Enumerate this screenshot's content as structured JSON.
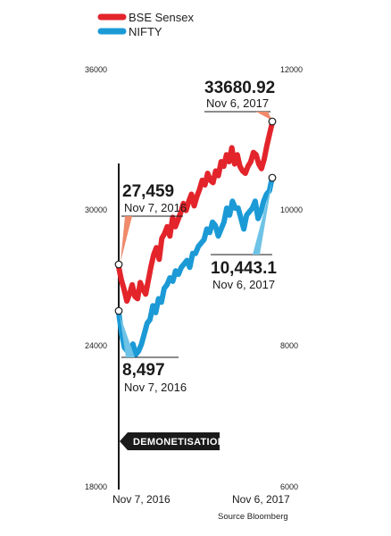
{
  "legend": [
    {
      "label": "BSE Sensex",
      "color": "#e3242b"
    },
    {
      "label": "NIFTY",
      "color": "#1b9ad6"
    }
  ],
  "chart_data": {
    "type": "line",
    "x_start_label": "Nov 7, 2016",
    "x_end_label": "Nov 6, 2017",
    "y_left": {
      "min": 18000,
      "max": 36000,
      "ticks": [
        "36000",
        "30000",
        "24000",
        "18000"
      ]
    },
    "y_right": {
      "min": 6000,
      "max": 12000,
      "ticks": [
        "12000",
        "10000",
        "8000",
        "6000"
      ]
    },
    "series": [
      {
        "name": "BSE Sensex",
        "axis": "left",
        "color": "#e3242b",
        "values": [
          27459,
          26900,
          26500,
          26000,
          26300,
          26700,
          26200,
          26100,
          26800,
          26500,
          26300,
          26900,
          27500,
          28000,
          28300,
          27800,
          28700,
          28900,
          29200,
          28800,
          29600,
          29200,
          29500,
          29800,
          30200,
          29900,
          30300,
          30600,
          30100,
          30500,
          30800,
          31200,
          31000,
          31500,
          31200,
          31100,
          31600,
          31400,
          32000,
          31800,
          32300,
          32000,
          32600,
          31900,
          32300,
          31800,
          31600,
          31500,
          31800,
          32000,
          32400,
          32300,
          31900,
          31700,
          32100,
          32700,
          33200,
          33680.92
        ]
      },
      {
        "name": "NIFTY",
        "axis": "right",
        "color": "#1b9ad6",
        "values": [
          8497,
          8200,
          8000,
          7950,
          7900,
          8050,
          7900,
          7950,
          8050,
          8200,
          8350,
          8400,
          8600,
          8500,
          8700,
          8650,
          8850,
          8900,
          9000,
          8950,
          9100,
          9050,
          9150,
          9200,
          9250,
          9150,
          9350,
          9350,
          9450,
          9500,
          9550,
          9700,
          9650,
          9800,
          9750,
          9600,
          9700,
          9800,
          10000,
          9900,
          10100,
          10000,
          10000,
          9850,
          9700,
          9900,
          9950,
          10000,
          10100,
          9850,
          9950,
          10100,
          10200,
          10250,
          10443.1
        ]
      }
    ],
    "annotations": {
      "sensex_start": {
        "value": "27,459",
        "date": "Nov 7, 2016"
      },
      "sensex_end": {
        "value": "33680.92",
        "date": "Nov 6, 2017"
      },
      "nifty_start": {
        "value": "8,497",
        "date": "Nov 7, 2016"
      },
      "nifty_end": {
        "value": "10,443.1",
        "date": "Nov 6, 2017"
      }
    },
    "event_label": "DEMONETISATION",
    "source": "Source Bloomberg"
  }
}
